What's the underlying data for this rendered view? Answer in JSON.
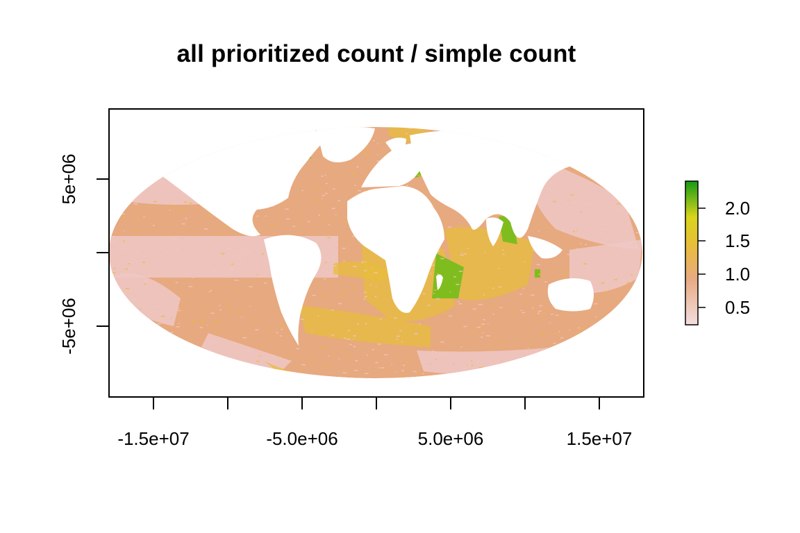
{
  "title": "all prioritized count / simple count",
  "x_axis": {
    "tick_labels": [
      "-1.5e+07",
      "-5.0e+06",
      "5.0e+06",
      "1.5e+07"
    ]
  },
  "y_axis": {
    "tick_labels": [
      "5e+06",
      "-5e+06"
    ]
  },
  "legend": {
    "tick_labels": [
      "2.0",
      "1.5",
      "1.0",
      "0.5"
    ],
    "color_low": "#f2dede",
    "color_mid_low": "#e8aa82",
    "color_mid": "#e8bd3a",
    "color_mid_high": "#d8d51a",
    "color_high": "#159a15"
  },
  "map": {
    "projection": "Mollweide",
    "ocean_base_color": "#e7a97f",
    "light_area_color": "#efc8c6",
    "yellow_area_color": "#e7bd3c",
    "green_area_color": "#7fbd1f",
    "land_color": "#ffffff"
  }
}
